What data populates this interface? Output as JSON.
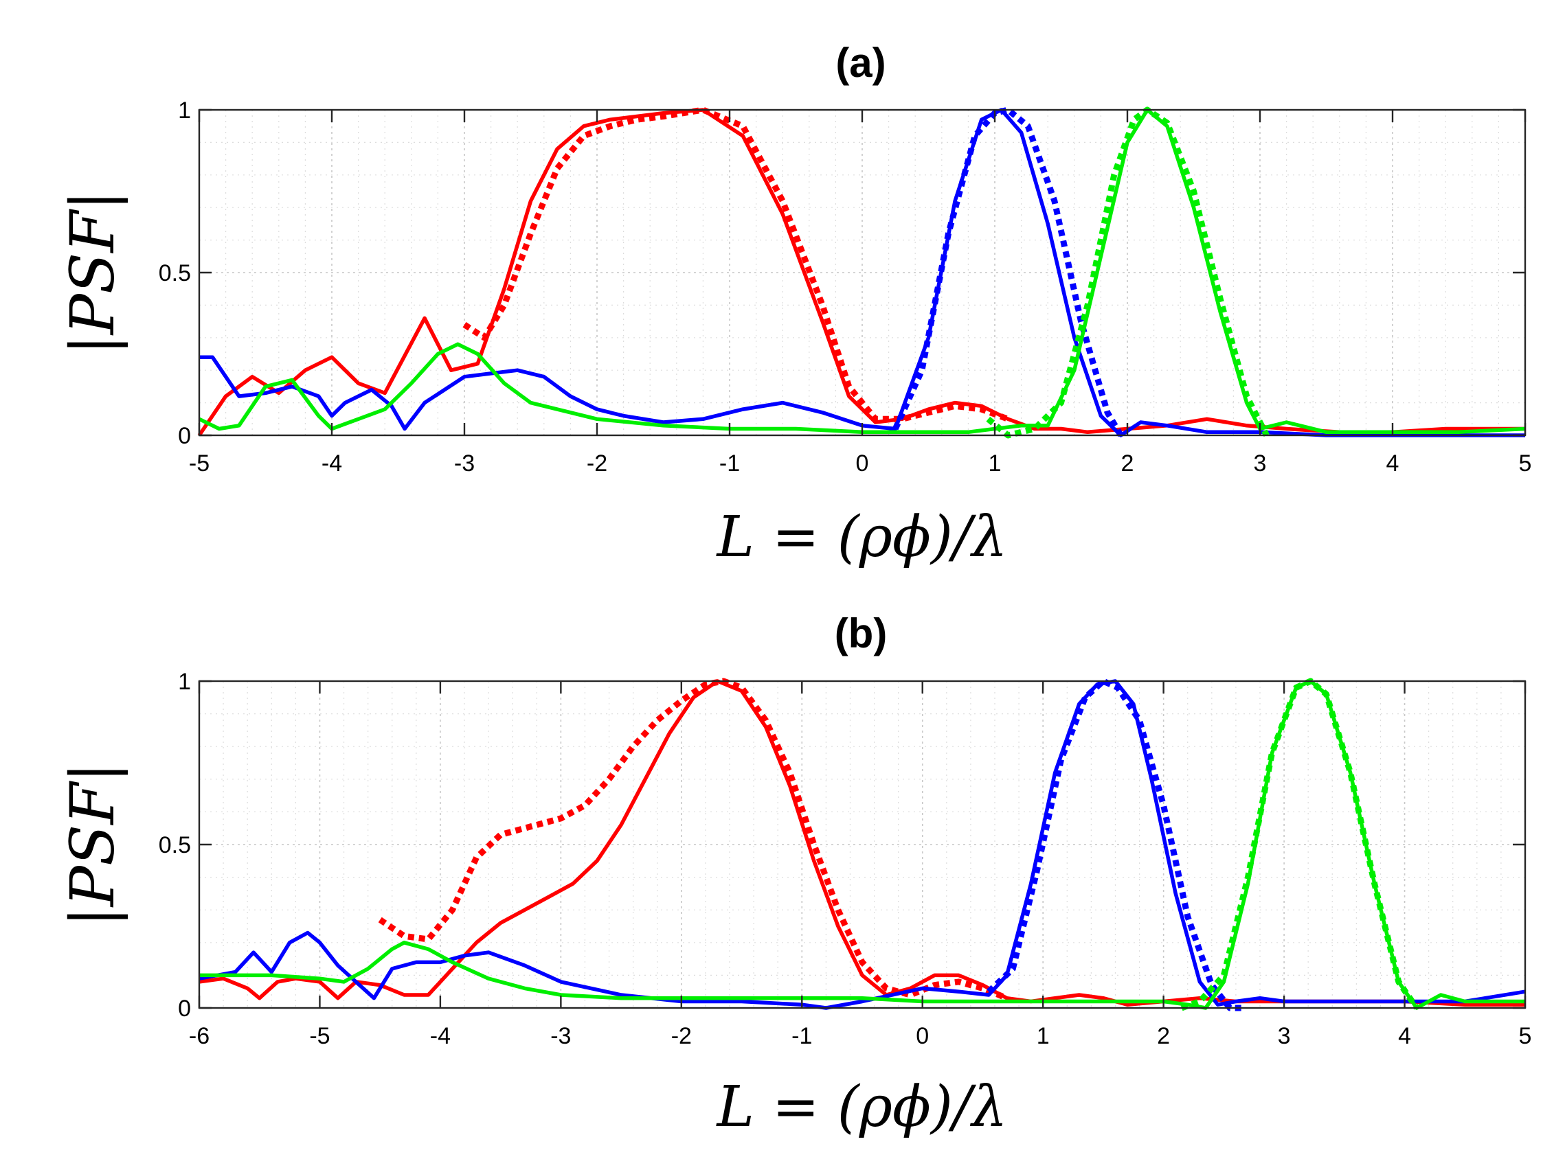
{
  "chart_data": [
    {
      "type": "line",
      "title": "(a)",
      "xlabel": "L = (ρϕ)/λ",
      "ylabel": "|PSF|",
      "xlim": [
        -5,
        5
      ],
      "ylim": [
        0,
        1
      ],
      "xticks": [
        "-5",
        "-4",
        "-3",
        "-2",
        "-1",
        "0",
        "1",
        "2",
        "3",
        "4",
        "5"
      ],
      "yticks": [
        "0",
        "0.5",
        "1"
      ],
      "grid": true,
      "series": [
        {
          "name": "red-solid",
          "color": "#ff0000",
          "style": "solid",
          "x": [
            -5,
            -4.8,
            -4.6,
            -4.4,
            -4.2,
            -4.0,
            -3.8,
            -3.6,
            -3.3,
            -3.1,
            -2.9,
            -2.7,
            -2.5,
            -2.3,
            -2.1,
            -1.9,
            -1.7,
            -1.5,
            -1.2,
            -0.9,
            -0.6,
            -0.3,
            -0.1,
            0.1,
            0.3,
            0.5,
            0.7,
            0.9,
            1.1,
            1.3,
            1.5,
            1.7,
            2.0,
            2.3,
            2.6,
            2.9,
            3.2,
            3.6,
            4.0,
            4.4,
            5.0
          ],
          "y": [
            0.0,
            0.12,
            0.18,
            0.13,
            0.2,
            0.24,
            0.16,
            0.13,
            0.36,
            0.2,
            0.22,
            0.45,
            0.72,
            0.88,
            0.95,
            0.97,
            0.98,
            0.99,
            1.0,
            0.92,
            0.68,
            0.35,
            0.12,
            0.04,
            0.05,
            0.08,
            0.1,
            0.09,
            0.05,
            0.02,
            0.02,
            0.01,
            0.02,
            0.03,
            0.05,
            0.03,
            0.02,
            0.01,
            0.01,
            0.02,
            0.02
          ]
        },
        {
          "name": "red-dotted",
          "color": "#ff0000",
          "style": "dotted",
          "x": [
            -3.0,
            -2.85,
            -2.7,
            -2.5,
            -2.3,
            -2.1,
            -1.9,
            -1.7,
            -1.5,
            -1.2,
            -0.9,
            -0.6,
            -0.3,
            -0.1,
            0.1,
            0.3,
            0.5,
            0.7,
            0.9,
            1.1
          ],
          "y": [
            0.34,
            0.3,
            0.4,
            0.62,
            0.82,
            0.92,
            0.95,
            0.97,
            0.98,
            1.0,
            0.95,
            0.72,
            0.4,
            0.15,
            0.05,
            0.05,
            0.07,
            0.09,
            0.08,
            0.05
          ]
        },
        {
          "name": "blue-solid",
          "color": "#0000ff",
          "style": "solid",
          "x": [
            -5,
            -4.9,
            -4.7,
            -4.5,
            -4.3,
            -4.1,
            -4.0,
            -3.9,
            -3.7,
            -3.55,
            -3.45,
            -3.3,
            -3.0,
            -2.8,
            -2.6,
            -2.4,
            -2.2,
            -2.0,
            -1.8,
            -1.5,
            -1.2,
            -0.9,
            -0.6,
            -0.3,
            0,
            0.25,
            0.5,
            0.7,
            0.9,
            1.05,
            1.2,
            1.4,
            1.6,
            1.8,
            1.95,
            2.1,
            2.3,
            2.6,
            3.0,
            3.5,
            4.0,
            4.5,
            5.0
          ],
          "y": [
            0.24,
            0.24,
            0.12,
            0.13,
            0.15,
            0.12,
            0.06,
            0.1,
            0.14,
            0.09,
            0.02,
            0.1,
            0.18,
            0.19,
            0.2,
            0.18,
            0.12,
            0.08,
            0.06,
            0.04,
            0.05,
            0.08,
            0.1,
            0.07,
            0.03,
            0.02,
            0.3,
            0.72,
            0.97,
            1.0,
            0.93,
            0.65,
            0.3,
            0.06,
            0.0,
            0.04,
            0.03,
            0.01,
            0.01,
            0.0,
            0.0,
            0.0,
            0.0
          ]
        },
        {
          "name": "blue-dotted",
          "color": "#0000ff",
          "style": "dotted",
          "x": [
            0.25,
            0.45,
            0.65,
            0.85,
            1.0,
            1.1,
            1.25,
            1.45,
            1.65,
            1.85,
            1.95
          ],
          "y": [
            0.02,
            0.2,
            0.62,
            0.92,
            0.99,
            1.0,
            0.95,
            0.72,
            0.35,
            0.07,
            0.0
          ]
        },
        {
          "name": "green-solid",
          "color": "#00ee00",
          "style": "solid",
          "x": [
            -5,
            -4.85,
            -4.7,
            -4.5,
            -4.3,
            -4.1,
            -4.0,
            -3.8,
            -3.6,
            -3.4,
            -3.2,
            -3.05,
            -2.9,
            -2.7,
            -2.5,
            -2.2,
            -2.0,
            -1.5,
            -1.0,
            -0.5,
            0,
            0.5,
            0.8,
            1.0,
            1.2,
            1.4,
            1.6,
            1.8,
            2.0,
            2.15,
            2.3,
            2.5,
            2.7,
            2.9,
            3.0,
            3.2,
            3.5,
            4.0,
            4.5,
            5.0
          ],
          "y": [
            0.05,
            0.02,
            0.03,
            0.15,
            0.17,
            0.06,
            0.02,
            0.05,
            0.08,
            0.16,
            0.25,
            0.28,
            0.25,
            0.16,
            0.1,
            0.07,
            0.05,
            0.03,
            0.02,
            0.02,
            0.01,
            0.01,
            0.01,
            0.02,
            0.03,
            0.03,
            0.2,
            0.55,
            0.9,
            1.0,
            0.95,
            0.7,
            0.38,
            0.1,
            0.02,
            0.04,
            0.01,
            0.01,
            0.01,
            0.02
          ]
        },
        {
          "name": "green-dotted",
          "color": "#00ee00",
          "style": "dotted",
          "x": [
            0.95,
            1.1,
            1.3,
            1.5,
            1.7,
            1.9,
            2.05,
            2.15,
            2.3,
            2.5,
            2.7,
            2.9,
            3.05
          ],
          "y": [
            0.05,
            0.0,
            0.02,
            0.1,
            0.4,
            0.8,
            0.97,
            1.0,
            0.96,
            0.75,
            0.42,
            0.12,
            0.0
          ]
        }
      ]
    },
    {
      "type": "line",
      "title": "(b)",
      "xlabel": "L = (ρϕ)/λ",
      "ylabel": "|PSF|",
      "xlim": [
        -6,
        5
      ],
      "ylim": [
        0,
        1
      ],
      "xticks": [
        "-6",
        "-5",
        "-4",
        "-3",
        "-2",
        "-1",
        "0",
        "1",
        "2",
        "3",
        "4",
        "5"
      ],
      "yticks": [
        "0",
        "0.5",
        "1"
      ],
      "grid": true,
      "series": [
        {
          "name": "red-solid",
          "color": "#ff0000",
          "style": "solid",
          "x": [
            -6,
            -5.8,
            -5.6,
            -5.5,
            -5.35,
            -5.2,
            -5.0,
            -4.85,
            -4.7,
            -4.5,
            -4.3,
            -4.1,
            -3.9,
            -3.7,
            -3.5,
            -3.3,
            -3.1,
            -2.9,
            -2.7,
            -2.5,
            -2.3,
            -2.1,
            -1.9,
            -1.7,
            -1.5,
            -1.3,
            -1.1,
            -0.9,
            -0.7,
            -0.5,
            -0.3,
            -0.1,
            0.1,
            0.3,
            0.5,
            0.7,
            0.9,
            1.1,
            1.3,
            1.5,
            1.7,
            2.0,
            2.3,
            2.6,
            3.0,
            3.5,
            4.0,
            4.5,
            5.0
          ],
          "y": [
            0.08,
            0.09,
            0.06,
            0.03,
            0.08,
            0.09,
            0.08,
            0.03,
            0.08,
            0.07,
            0.04,
            0.04,
            0.12,
            0.2,
            0.26,
            0.3,
            0.34,
            0.38,
            0.45,
            0.56,
            0.7,
            0.84,
            0.95,
            1.0,
            0.97,
            0.86,
            0.68,
            0.45,
            0.25,
            0.1,
            0.04,
            0.06,
            0.1,
            0.1,
            0.07,
            0.03,
            0.02,
            0.03,
            0.04,
            0.03,
            0.01,
            0.02,
            0.03,
            0.02,
            0.02,
            0.02,
            0.02,
            0.01,
            0.01
          ]
        },
        {
          "name": "red-dotted",
          "color": "#ff0000",
          "style": "dotted",
          "x": [
            -4.5,
            -4.3,
            -4.1,
            -3.9,
            -3.7,
            -3.5,
            -3.3,
            -3.0,
            -2.8,
            -2.6,
            -2.4,
            -2.2,
            -2.0,
            -1.8,
            -1.65,
            -1.5,
            -1.3,
            -1.1,
            -0.9,
            -0.7,
            -0.5,
            -0.3,
            -0.1,
            0.1,
            0.3,
            0.5,
            0.7
          ],
          "y": [
            0.27,
            0.22,
            0.21,
            0.3,
            0.46,
            0.53,
            0.55,
            0.58,
            0.62,
            0.7,
            0.8,
            0.88,
            0.94,
            0.99,
            1.0,
            0.98,
            0.88,
            0.72,
            0.5,
            0.3,
            0.14,
            0.06,
            0.04,
            0.07,
            0.08,
            0.06,
            0.03
          ]
        },
        {
          "name": "blue-solid",
          "color": "#0000ff",
          "style": "solid",
          "x": [
            -6,
            -5.85,
            -5.7,
            -5.55,
            -5.4,
            -5.25,
            -5.1,
            -5.0,
            -4.85,
            -4.7,
            -4.55,
            -4.4,
            -4.2,
            -4.0,
            -3.8,
            -3.6,
            -3.3,
            -3.0,
            -2.5,
            -2.0,
            -1.5,
            -1.0,
            -0.8,
            -0.5,
            0,
            0.3,
            0.55,
            0.7,
            0.9,
            1.1,
            1.3,
            1.45,
            1.6,
            1.75,
            1.9,
            2.1,
            2.3,
            2.45,
            2.6,
            2.8,
            3.0,
            3.5,
            4.0,
            4.5,
            5.0
          ],
          "y": [
            0.09,
            0.1,
            0.11,
            0.17,
            0.11,
            0.2,
            0.23,
            0.2,
            0.13,
            0.08,
            0.03,
            0.12,
            0.14,
            0.14,
            0.16,
            0.17,
            0.13,
            0.08,
            0.04,
            0.02,
            0.02,
            0.01,
            0.0,
            0.02,
            0.06,
            0.05,
            0.04,
            0.1,
            0.38,
            0.72,
            0.93,
            0.99,
            1.0,
            0.93,
            0.7,
            0.35,
            0.08,
            0.01,
            0.02,
            0.03,
            0.02,
            0.02,
            0.02,
            0.02,
            0.05
          ]
        },
        {
          "name": "blue-dotted",
          "color": "#0000ff",
          "style": "dotted",
          "x": [
            0.55,
            0.75,
            0.95,
            1.15,
            1.35,
            1.5,
            1.62,
            1.8,
            2.0,
            2.2,
            2.4,
            2.55,
            2.65
          ],
          "y": [
            0.05,
            0.12,
            0.42,
            0.76,
            0.95,
            1.0,
            0.98,
            0.88,
            0.62,
            0.28,
            0.07,
            0.0,
            0.0
          ]
        },
        {
          "name": "green-solid",
          "color": "#00ee00",
          "style": "solid",
          "x": [
            -6,
            -5.7,
            -5.4,
            -5.0,
            -4.8,
            -4.6,
            -4.4,
            -4.3,
            -4.1,
            -3.9,
            -3.6,
            -3.3,
            -3.0,
            -2.5,
            -2.0,
            -1.5,
            -1.0,
            -0.5,
            0,
            0.5,
            1.0,
            1.5,
            2.0,
            2.2,
            2.35,
            2.5,
            2.7,
            2.9,
            3.1,
            3.22,
            3.35,
            3.55,
            3.75,
            3.95,
            4.1,
            4.3,
            4.5,
            5.0
          ],
          "y": [
            0.1,
            0.1,
            0.1,
            0.09,
            0.08,
            0.12,
            0.18,
            0.2,
            0.18,
            0.14,
            0.09,
            0.06,
            0.04,
            0.03,
            0.03,
            0.03,
            0.03,
            0.03,
            0.02,
            0.02,
            0.02,
            0.02,
            0.02,
            0.01,
            0.0,
            0.08,
            0.38,
            0.78,
            0.98,
            1.0,
            0.96,
            0.72,
            0.38,
            0.08,
            0.0,
            0.04,
            0.02,
            0.02
          ]
        },
        {
          "name": "green-dotted",
          "color": "#00ee00",
          "style": "dotted",
          "x": [
            2.15,
            2.3,
            2.5,
            2.7,
            2.9,
            3.1,
            3.22,
            3.35,
            3.55,
            3.75,
            3.95,
            4.1
          ],
          "y": [
            0.0,
            0.02,
            0.1,
            0.4,
            0.78,
            0.98,
            1.0,
            0.96,
            0.72,
            0.38,
            0.08,
            0.0
          ]
        }
      ]
    }
  ]
}
